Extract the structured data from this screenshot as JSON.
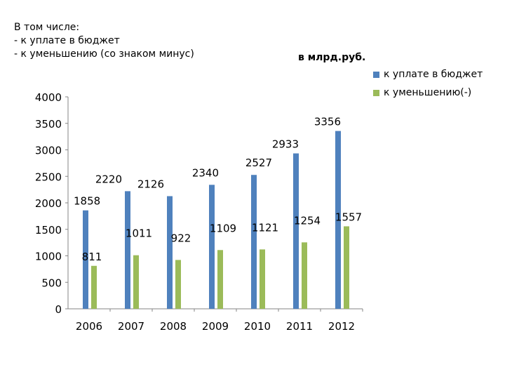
{
  "note": {
    "lines": [
      "В том числе:",
      "- к уплате в бюджет",
      "- к уменьшению (со знаком минус)"
    ]
  },
  "unit_label": "в млрд.руб.",
  "colors": {
    "series_budget": "#4f81bd",
    "series_decrease": "#9bbb59",
    "axis": "#868686"
  },
  "chart_data": {
    "type": "bar",
    "title": "",
    "xlabel": "",
    "ylabel": "",
    "categories": [
      "2006",
      "2007",
      "2008",
      "2009",
      "2010",
      "2011",
      "2012"
    ],
    "series": [
      {
        "name": "к уплате в бюджет",
        "values": [
          1858,
          2220,
          2126,
          2340,
          2527,
          2933,
          3356
        ]
      },
      {
        "name": "к уменьшению(-)",
        "values": [
          811,
          1011,
          922,
          1109,
          1121,
          1254,
          1557
        ]
      }
    ],
    "ylim": [
      0,
      4000
    ],
    "yticks": [
      0,
      500,
      1000,
      1500,
      2000,
      2500,
      3000,
      3500,
      4000
    ],
    "grid": false,
    "legend": "top-right"
  }
}
